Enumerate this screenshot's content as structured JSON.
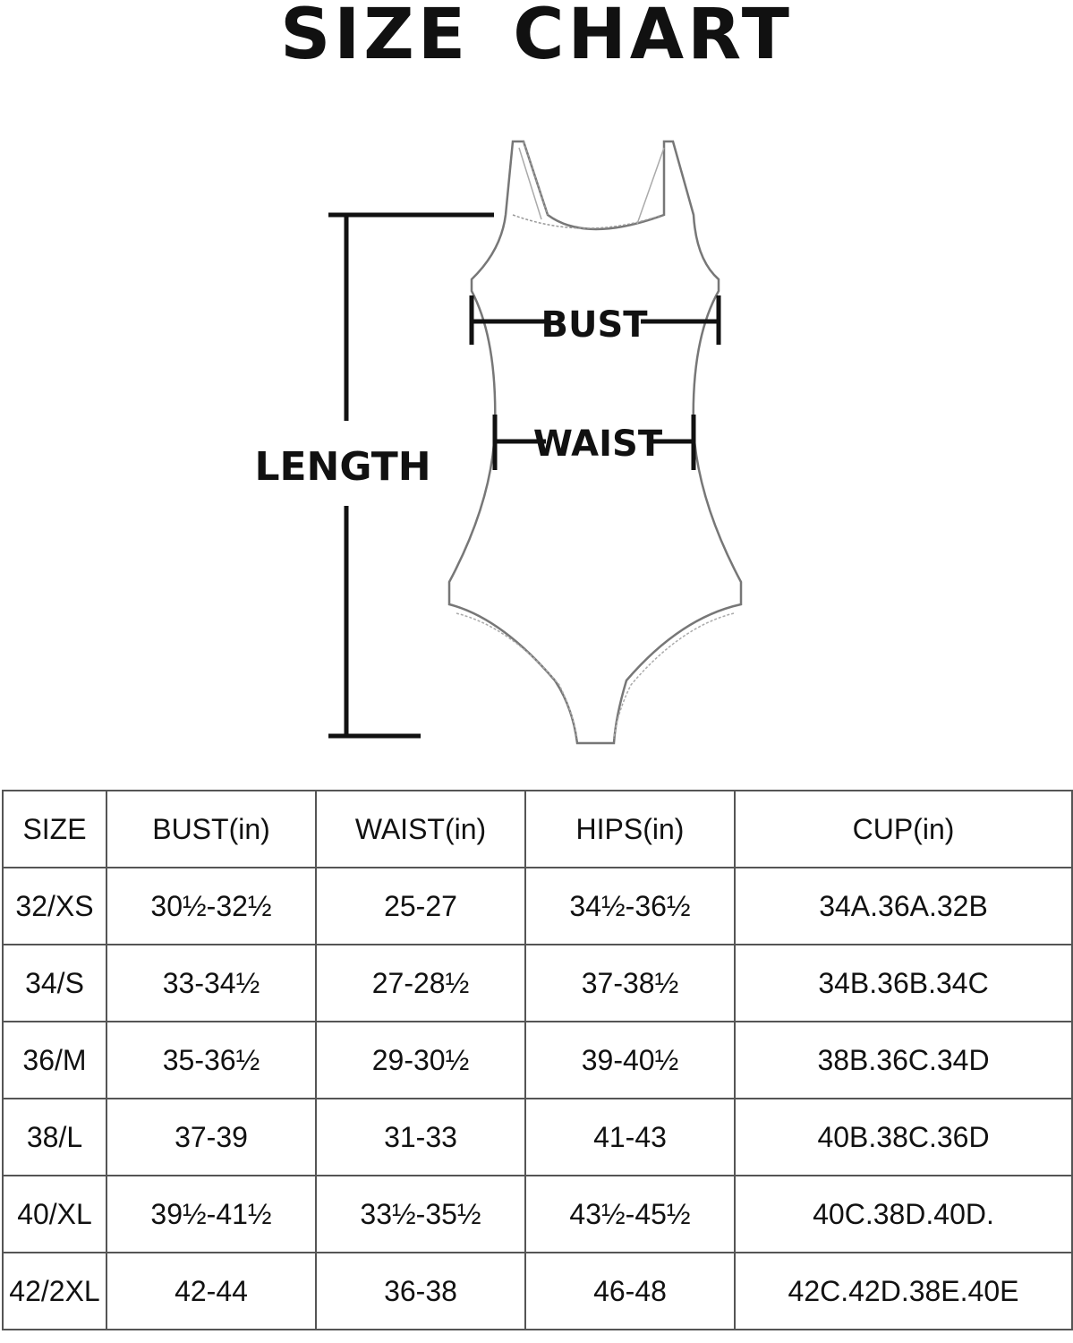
{
  "title": "SIZE CHART",
  "diagram": {
    "length_label": "LENGTH",
    "bust_label": "BUST",
    "waist_label": "WAIST"
  },
  "table": {
    "headers": [
      "SIZE",
      "BUST(in)",
      "WAIST(in)",
      "HIPS(in)",
      "CUP(in)"
    ],
    "rows": [
      [
        "32/XS",
        "30½-32½",
        "25-27",
        "34½-36½",
        "34A.36A.32B"
      ],
      [
        "34/S",
        "33-34½",
        "27-28½",
        "37-38½",
        "34B.36B.34C"
      ],
      [
        "36/M",
        "35-36½",
        "29-30½",
        "39-40½",
        "38B.36C.34D"
      ],
      [
        "38/L",
        "37-39",
        "31-33",
        "41-43",
        "40B.38C.36D"
      ],
      [
        "40/XL",
        "39½-41½",
        "33½-35½",
        "43½-45½",
        "40C.38D.40D."
      ],
      [
        "42/2XL",
        "42-44",
        "36-38",
        "46-48",
        "42C.42D.38E.40E"
      ]
    ]
  }
}
